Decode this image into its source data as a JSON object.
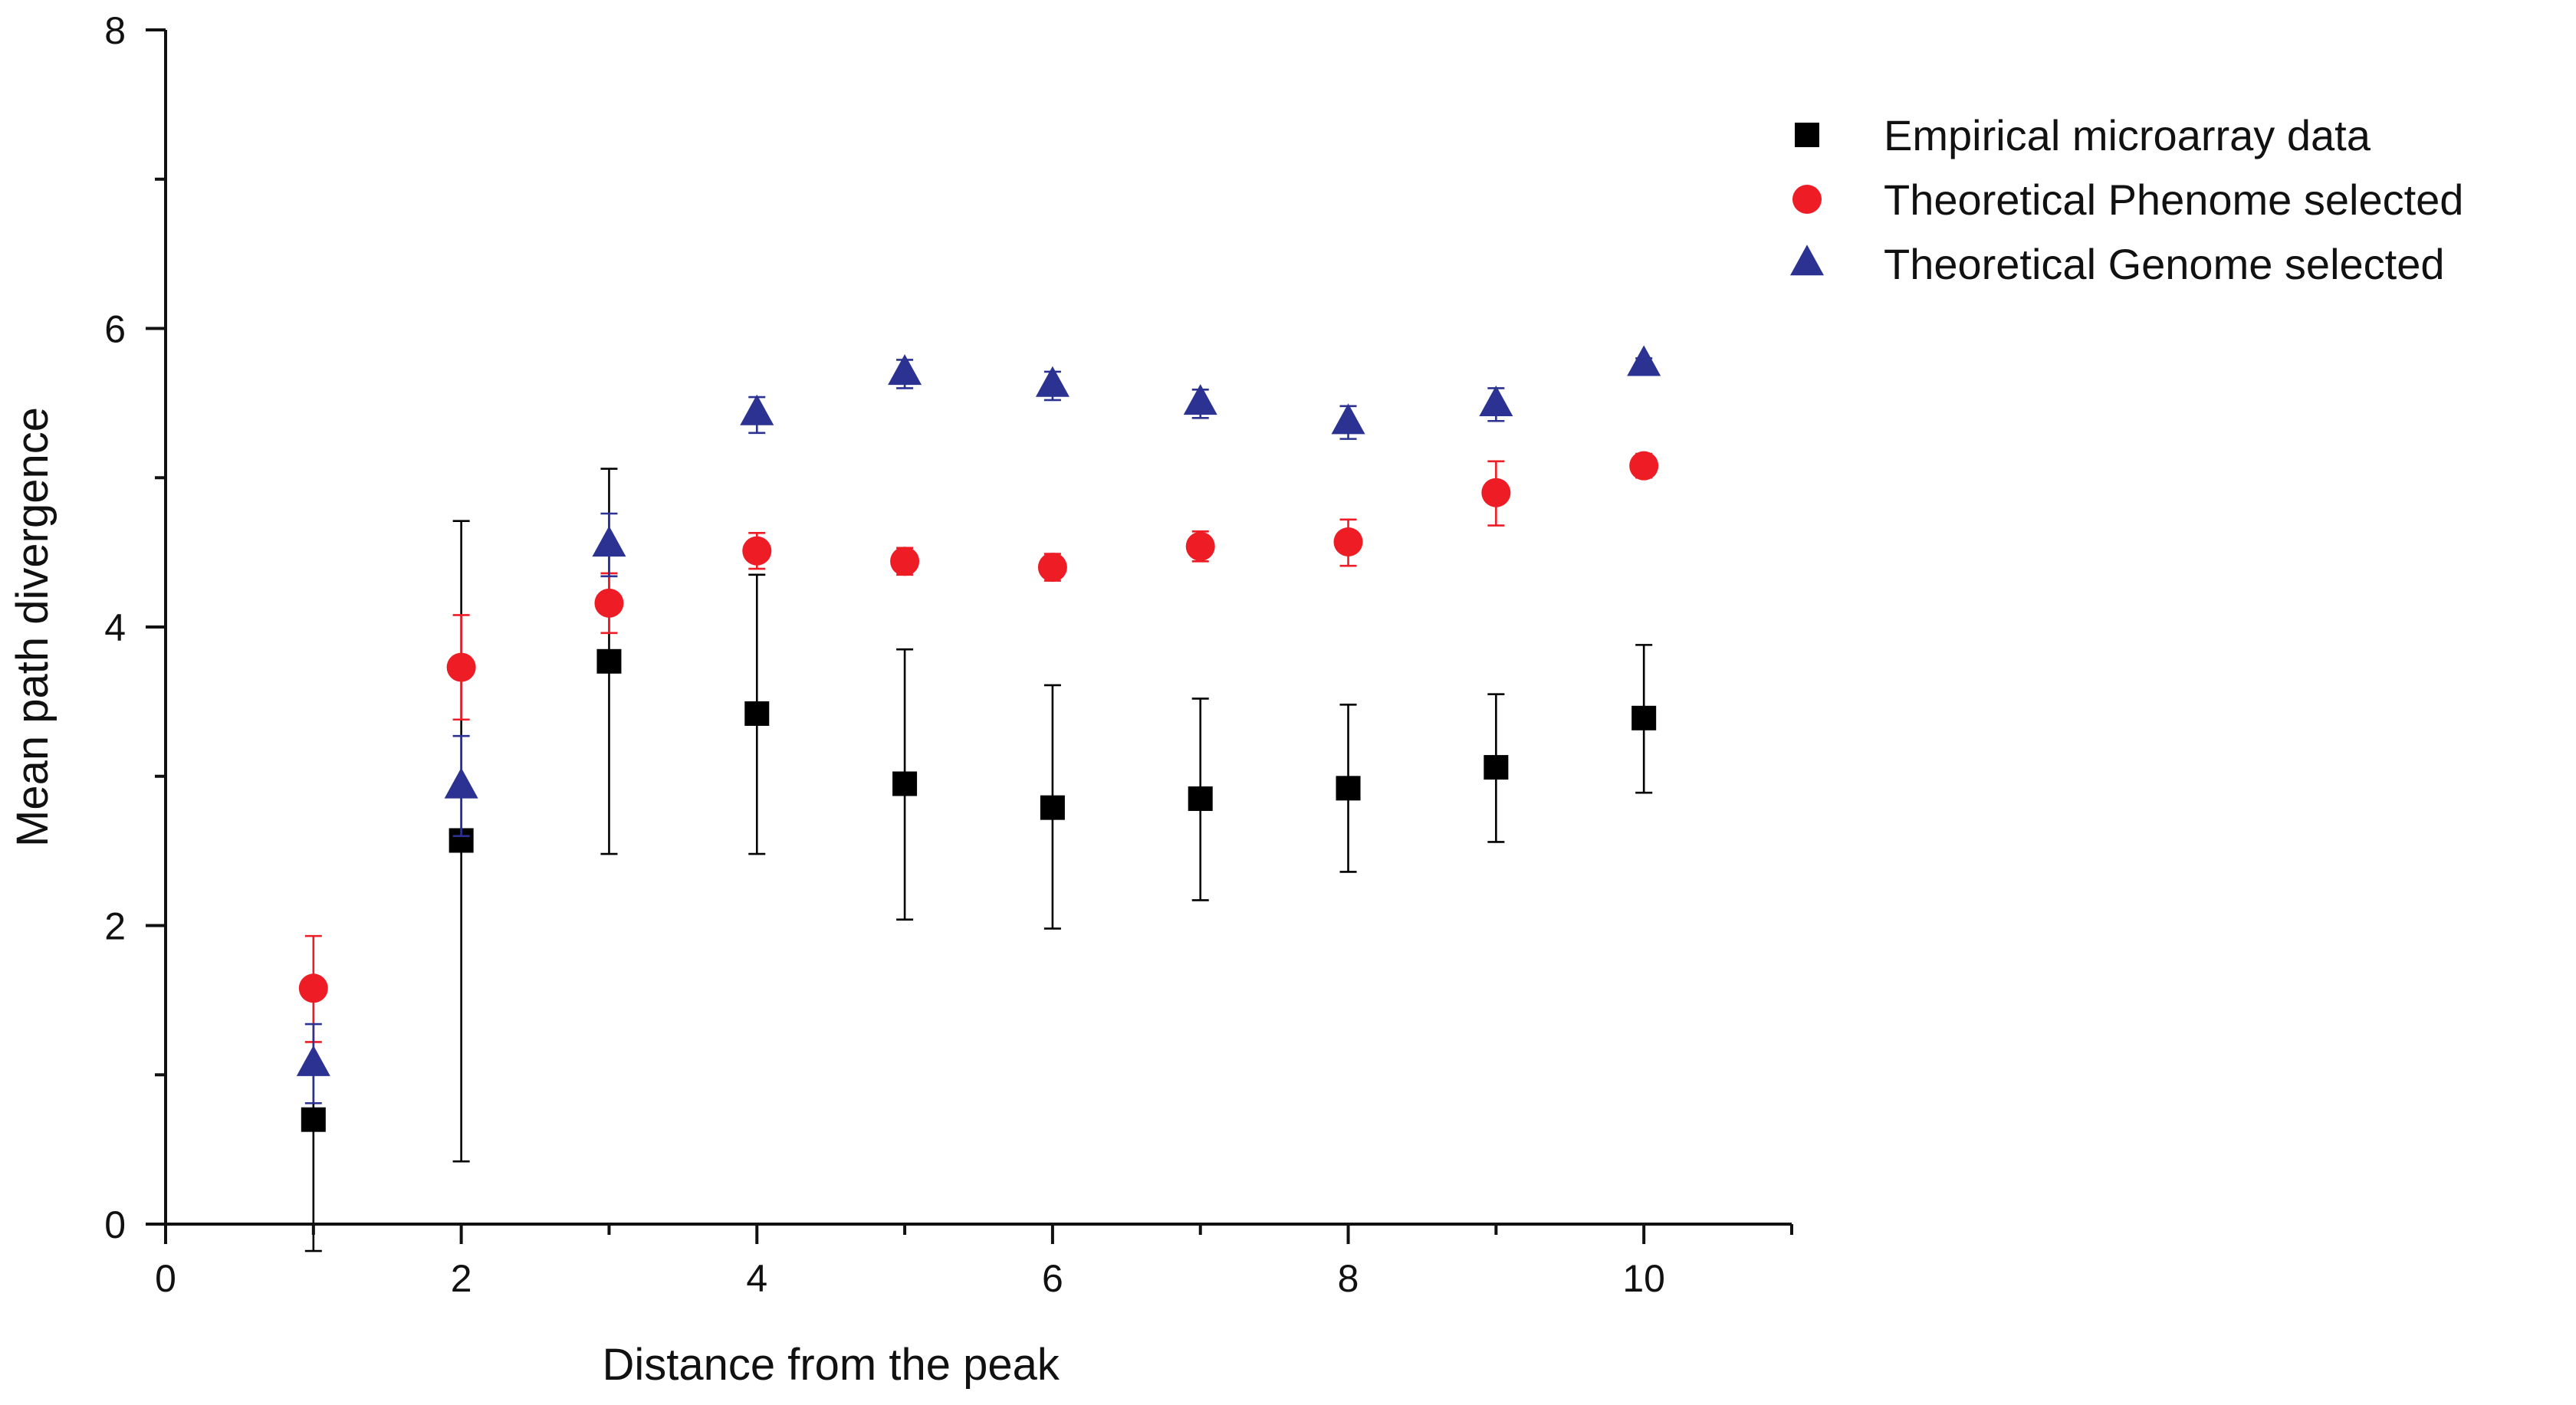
{
  "chart_data": {
    "type": "scatter",
    "title": "",
    "xlabel": "Distance from the peak",
    "ylabel": "Mean path divergence",
    "xlim": [
      0,
      11
    ],
    "ylim": [
      0,
      8
    ],
    "xticks": [
      0,
      2,
      4,
      6,
      8,
      10
    ],
    "yticks": [
      0,
      2,
      4,
      6,
      8
    ],
    "x_minor_ticks": [
      1,
      3,
      5,
      7,
      9,
      11
    ],
    "y_minor_ticks": [
      1,
      3,
      5,
      7
    ],
    "grid": false,
    "legend_position": "top-right",
    "series": [
      {
        "name": "Empirical microarray data",
        "marker": "square",
        "color": "#000000",
        "x": [
          1,
          2,
          3,
          4,
          5,
          6,
          7,
          8,
          9,
          10
        ],
        "y": [
          0.7,
          2.57,
          3.77,
          3.42,
          2.95,
          2.79,
          2.85,
          2.92,
          3.06,
          3.39
        ],
        "err_low": [
          -0.18,
          0.42,
          2.48,
          2.48,
          2.04,
          1.98,
          2.17,
          2.36,
          2.56,
          2.89
        ],
        "err_high": [
          1.58,
          4.71,
          5.06,
          4.35,
          3.85,
          3.61,
          3.52,
          3.48,
          3.55,
          3.88
        ]
      },
      {
        "name": "Theoretical Phenome selected",
        "marker": "circle",
        "color": "#ee1c25",
        "x": [
          1,
          2,
          3,
          4,
          5,
          6,
          7,
          8,
          9,
          10
        ],
        "y": [
          1.58,
          3.73,
          4.16,
          4.51,
          4.44,
          4.4,
          4.54,
          4.57,
          4.9,
          5.08
        ],
        "err_low": [
          1.22,
          3.38,
          3.96,
          4.39,
          4.35,
          4.31,
          4.44,
          4.41,
          4.68,
          5.0
        ],
        "err_high": [
          1.93,
          4.08,
          4.36,
          4.63,
          4.53,
          4.49,
          4.64,
          4.72,
          5.11,
          5.16
        ]
      },
      {
        "name": "Theoretical Genome selected",
        "marker": "triangle",
        "color": "#2b3292",
        "x": [
          1,
          2,
          3,
          4,
          5,
          6,
          7,
          8,
          9,
          10
        ],
        "y": [
          1.07,
          2.93,
          4.55,
          5.43,
          5.7,
          5.62,
          5.5,
          5.37,
          5.49,
          5.76
        ],
        "err_low": [
          0.81,
          2.6,
          4.34,
          5.3,
          5.6,
          5.52,
          5.4,
          5.26,
          5.38,
          5.72
        ],
        "err_high": [
          1.34,
          3.27,
          4.76,
          5.54,
          5.79,
          5.71,
          5.59,
          5.48,
          5.6,
          5.8
        ]
      }
    ]
  }
}
